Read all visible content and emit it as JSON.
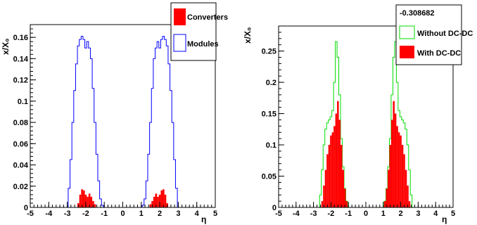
{
  "chart_data": [
    {
      "type": "histogram",
      "title": "",
      "xlabel": "η",
      "ylabel": "x/X₀",
      "xlim": [
        -5,
        5
      ],
      "ylim": [
        0,
        0.172
      ],
      "xticks": [
        "-5",
        "-4",
        "-3",
        "-2",
        "-1",
        "0",
        "1",
        "2",
        "3",
        "4",
        "5"
      ],
      "yticks": [
        "0",
        "0.02",
        "0.04",
        "0.06",
        "0.08",
        "0.1",
        "0.12",
        "0.14",
        "0.16"
      ],
      "grid": false,
      "legend_position": "top-right",
      "series": [
        {
          "name": "Converters",
          "style": "filled",
          "color": "#ff0000",
          "x": [
            -2.5,
            -2.4,
            -2.3,
            -2.2,
            -2.1,
            -2.0,
            -1.9,
            -1.8,
            -1.7,
            -1.6,
            -1.5,
            -1.4,
            1.4,
            1.5,
            1.6,
            1.7,
            1.8,
            1.9,
            2.0,
            2.1,
            2.2,
            2.3,
            2.4,
            2.5
          ],
          "values": [
            0.0,
            0.004,
            0.012,
            0.017,
            0.016,
            0.012,
            0.01,
            0.013,
            0.01,
            0.006,
            0.003,
            0.0,
            0.0,
            0.003,
            0.006,
            0.01,
            0.013,
            0.01,
            0.012,
            0.016,
            0.017,
            0.012,
            0.004,
            0.0
          ]
        },
        {
          "name": "Modules",
          "style": "outline",
          "color": "#0000ff",
          "x": [
            -3.0,
            -2.9,
            -2.8,
            -2.7,
            -2.6,
            -2.5,
            -2.4,
            -2.3,
            -2.2,
            -2.1,
            -2.0,
            -1.9,
            -1.8,
            -1.7,
            -1.6,
            -1.5,
            -1.4,
            -1.3,
            -1.2,
            -1.1,
            -1.0,
            1.0,
            1.1,
            1.2,
            1.3,
            1.4,
            1.5,
            1.6,
            1.7,
            1.8,
            1.9,
            2.0,
            2.1,
            2.2,
            2.3,
            2.4,
            2.5,
            2.6,
            2.7,
            2.8,
            2.9,
            3.0
          ],
          "values": [
            0.0,
            0.018,
            0.045,
            0.08,
            0.11,
            0.135,
            0.152,
            0.158,
            0.161,
            0.158,
            0.15,
            0.156,
            0.15,
            0.14,
            0.112,
            0.08,
            0.05,
            0.025,
            0.008,
            0.002,
            0.0,
            0.0,
            0.002,
            0.008,
            0.025,
            0.05,
            0.08,
            0.112,
            0.14,
            0.15,
            0.156,
            0.15,
            0.158,
            0.161,
            0.158,
            0.152,
            0.135,
            0.11,
            0.08,
            0.045,
            0.018,
            0.0
          ]
        }
      ]
    },
    {
      "type": "histogram",
      "title": "",
      "xlabel": "η",
      "ylabel": "x/X₀",
      "xlim": [
        -5,
        5
      ],
      "ylim": [
        0,
        0.29
      ],
      "xticks": [
        "-5",
        "-4",
        "-3",
        "-2",
        "-1",
        "0",
        "1",
        "2",
        "3",
        "4",
        "5"
      ],
      "yticks": [
        "0",
        "0.05",
        "0.1",
        "0.15",
        "0.2",
        "0.25"
      ],
      "grid": false,
      "legend_position": "top-right",
      "legend_header": "-0.308682",
      "series": [
        {
          "name": "With DC-DC",
          "style": "filled",
          "color": "#ff0000",
          "x": [
            -2.6,
            -2.5,
            -2.4,
            -2.3,
            -2.2,
            -2.1,
            -2.0,
            -1.9,
            -1.8,
            -1.7,
            -1.6,
            -1.5,
            -1.4,
            -1.3,
            -1.2,
            -1.1,
            -1.0,
            1.0,
            1.1,
            1.2,
            1.3,
            1.4,
            1.5,
            1.6,
            1.7,
            1.8,
            1.9,
            2.0,
            2.1,
            2.2,
            2.3,
            2.4,
            2.5,
            2.6
          ],
          "values": [
            0.0,
            0.01,
            0.035,
            0.06,
            0.085,
            0.1,
            0.115,
            0.12,
            0.13,
            0.15,
            0.17,
            0.14,
            0.1,
            0.06,
            0.03,
            0.01,
            0.0,
            0.0,
            0.01,
            0.03,
            0.06,
            0.1,
            0.14,
            0.17,
            0.15,
            0.13,
            0.12,
            0.115,
            0.1,
            0.085,
            0.06,
            0.035,
            0.01,
            0.0
          ]
        },
        {
          "name": "Without DC-DC",
          "style": "outline",
          "color": "#00dd00",
          "x": [
            -2.7,
            -2.6,
            -2.5,
            -2.4,
            -2.3,
            -2.2,
            -2.1,
            -2.0,
            -1.9,
            -1.8,
            -1.7,
            -1.6,
            -1.5,
            -1.4,
            -1.3,
            -1.2,
            -1.1,
            -1.0,
            1.0,
            1.1,
            1.2,
            1.3,
            1.4,
            1.5,
            1.6,
            1.7,
            1.8,
            1.9,
            2.0,
            2.1,
            2.2,
            2.3,
            2.4,
            2.5,
            2.6,
            2.7
          ],
          "values": [
            0.0,
            0.02,
            0.06,
            0.1,
            0.125,
            0.135,
            0.14,
            0.145,
            0.155,
            0.2,
            0.265,
            0.24,
            0.18,
            0.11,
            0.065,
            0.03,
            0.01,
            0.0,
            0.0,
            0.01,
            0.03,
            0.065,
            0.11,
            0.18,
            0.24,
            0.265,
            0.2,
            0.155,
            0.145,
            0.14,
            0.135,
            0.125,
            0.1,
            0.06,
            0.02,
            0.0
          ]
        }
      ]
    }
  ]
}
